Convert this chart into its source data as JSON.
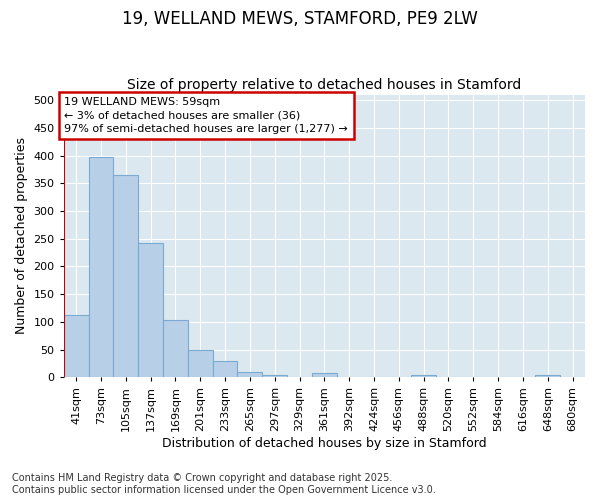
{
  "title1": "19, WELLAND MEWS, STAMFORD, PE9 2LW",
  "title2": "Size of property relative to detached houses in Stamford",
  "xlabel": "Distribution of detached houses by size in Stamford",
  "ylabel": "Number of detached properties",
  "categories": [
    "41sqm",
    "73sqm",
    "105sqm",
    "137sqm",
    "169sqm",
    "201sqm",
    "233sqm",
    "265sqm",
    "297sqm",
    "329sqm",
    "361sqm",
    "392sqm",
    "424sqm",
    "456sqm",
    "488sqm",
    "520sqm",
    "552sqm",
    "584sqm",
    "616sqm",
    "648sqm",
    "680sqm"
  ],
  "values": [
    112,
    397,
    365,
    242,
    104,
    50,
    29,
    10,
    5,
    0,
    7,
    0,
    0,
    0,
    4,
    0,
    0,
    0,
    0,
    4,
    0
  ],
  "bar_color": "#b8cfe8",
  "bar_edge_color": "#7aaad0",
  "annotation_line1": "19 WELLAND MEWS: 59sqm",
  "annotation_line2": "← 3% of detached houses are smaller (36)",
  "annotation_line3": "97% of semi-detached houses are larger (1,277) →",
  "annotation_box_color": "#ffffff",
  "annotation_box_edge_color": "#cc0000",
  "vline_color": "#cc0000",
  "vline_x": -0.5,
  "footnote": "Contains HM Land Registry data © Crown copyright and database right 2025.\nContains public sector information licensed under the Open Government Licence v3.0.",
  "ylim": [
    0,
    510
  ],
  "yticks": [
    0,
    50,
    100,
    150,
    200,
    250,
    300,
    350,
    400,
    450,
    500
  ],
  "fig_bg_color": "#ffffff",
  "plot_bg_color": "#dce8f0",
  "title_fontsize": 12,
  "subtitle_fontsize": 10,
  "axis_label_fontsize": 9,
  "tick_fontsize": 8,
  "annotation_fontsize": 8,
  "footnote_fontsize": 7
}
